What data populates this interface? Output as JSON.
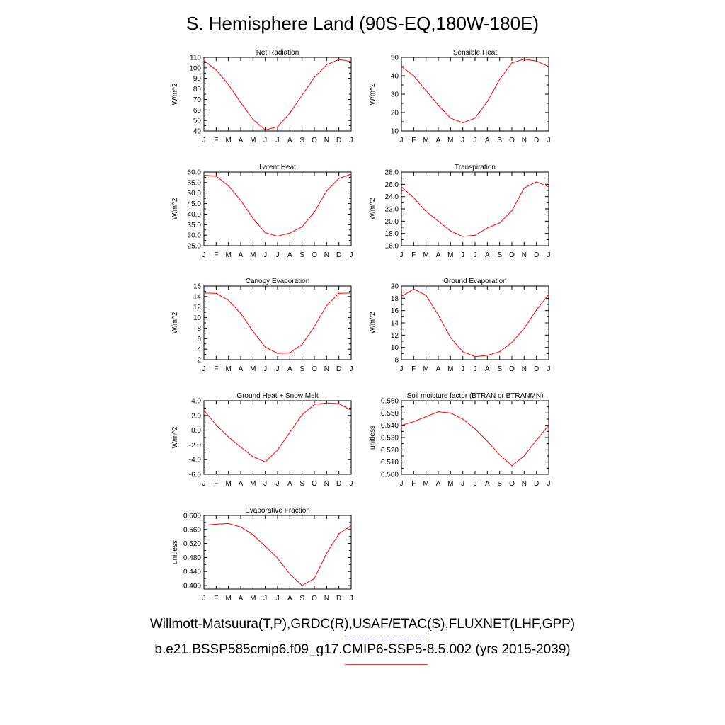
{
  "title": "S. Hemisphere Land (90S-EQ,180W-180E)",
  "legend": {
    "obs_label": "Willmott-Matsuura(T,P),GRDC(R),USAF/ETAC(S),FLUXNET(LHF,GPP)",
    "model_label": "b.e21.BSSP585cmip6.f09_g17.CMIP6-SSP5-8.5.002 (yrs 2015-2039)",
    "obs_color": "#4a4af0",
    "model_color": "#ff0000"
  },
  "chart_data": [
    {
      "type": "line",
      "title": "Net Radiation",
      "ylabel": "W/m^2",
      "categories": [
        "J",
        "F",
        "M",
        "A",
        "M",
        "J",
        "J",
        "A",
        "S",
        "O",
        "N",
        "D",
        "J"
      ],
      "ylim": [
        40,
        110
      ],
      "yticks": [
        40,
        50,
        60,
        70,
        80,
        90,
        100,
        110
      ],
      "ytick_labels": [
        "40",
        "50",
        "60",
        "70",
        "80",
        "90",
        "100",
        "110"
      ],
      "series": [
        {
          "values": [
            107,
            98,
            84,
            67,
            51,
            41,
            44,
            57,
            74,
            91,
            103,
            108,
            106
          ],
          "color": "#ff0000"
        }
      ]
    },
    {
      "type": "line",
      "title": "Sensible Heat",
      "ylabel": "W/m^2",
      "categories": [
        "J",
        "F",
        "M",
        "A",
        "M",
        "J",
        "J",
        "A",
        "S",
        "O",
        "N",
        "D",
        "J"
      ],
      "ylim": [
        10,
        50
      ],
      "yticks": [
        10,
        20,
        30,
        40,
        50
      ],
      "ytick_labels": [
        "10",
        "20",
        "30",
        "40",
        "50"
      ],
      "series": [
        {
          "values": [
            45,
            40,
            32,
            24,
            17,
            14.5,
            17,
            26,
            38,
            47,
            49,
            48,
            45
          ],
          "color": "#ff0000"
        }
      ]
    },
    {
      "type": "line",
      "title": "Latent Heat",
      "ylabel": "W/m^2",
      "categories": [
        "J",
        "F",
        "M",
        "A",
        "M",
        "J",
        "J",
        "A",
        "S",
        "O",
        "N",
        "D",
        "J"
      ],
      "ylim": [
        25,
        60
      ],
      "yticks": [
        25,
        30,
        35,
        40,
        45,
        50,
        55,
        60
      ],
      "ytick_labels": [
        "25.0",
        "30.0",
        "35.0",
        "40.0",
        "45.0",
        "50.0",
        "55.0",
        "60.0"
      ],
      "series": [
        {
          "values": [
            58.5,
            58,
            53.5,
            46.5,
            38,
            31.2,
            29.5,
            31,
            34,
            41,
            51,
            57,
            59
          ],
          "color": "#ff0000"
        }
      ]
    },
    {
      "type": "line",
      "title": "Transpiration",
      "ylabel": "W/m^2",
      "categories": [
        "J",
        "F",
        "M",
        "A",
        "M",
        "J",
        "J",
        "A",
        "S",
        "O",
        "N",
        "D",
        "J"
      ],
      "ylim": [
        16,
        28
      ],
      "yticks": [
        16,
        18,
        20,
        22,
        24,
        26,
        28
      ],
      "ytick_labels": [
        "16.0",
        "18.0",
        "20.0",
        "22.0",
        "24.0",
        "26.0",
        "28.0"
      ],
      "series": [
        {
          "values": [
            25.6,
            23.8,
            21.6,
            20,
            18.4,
            17.5,
            17.7,
            18.9,
            19.7,
            21.7,
            25.4,
            26.4,
            25.6
          ],
          "color": "#ff0000"
        }
      ]
    },
    {
      "type": "line",
      "title": "Canopy Evaporation",
      "ylabel": "W/m^2",
      "categories": [
        "J",
        "F",
        "M",
        "A",
        "M",
        "J",
        "J",
        "A",
        "S",
        "O",
        "N",
        "D",
        "J"
      ],
      "ylim": [
        2,
        16
      ],
      "yticks": [
        2,
        4,
        6,
        8,
        10,
        12,
        14,
        16
      ],
      "ytick_labels": [
        "2",
        "4",
        "6",
        "8",
        "10",
        "12",
        "14",
        "16"
      ],
      "series": [
        {
          "values": [
            14.7,
            14.6,
            13.3,
            10.8,
            7.4,
            4.4,
            3.2,
            3.3,
            4.9,
            8.3,
            12.3,
            14.6,
            14.7
          ],
          "color": "#ff0000"
        }
      ]
    },
    {
      "type": "line",
      "title": "Ground Evaporation",
      "ylabel": "W/m^2",
      "categories": [
        "J",
        "F",
        "M",
        "A",
        "M",
        "J",
        "J",
        "A",
        "S",
        "O",
        "N",
        "D",
        "J"
      ],
      "ylim": [
        8,
        20
      ],
      "yticks": [
        8,
        10,
        12,
        14,
        16,
        18,
        20
      ],
      "ytick_labels": [
        "8",
        "10",
        "12",
        "14",
        "16",
        "18",
        "20"
      ],
      "series": [
        {
          "values": [
            18.3,
            19.5,
            18.5,
            15.3,
            11.6,
            9.3,
            8.5,
            8.7,
            9.3,
            10.8,
            13.1,
            16.1,
            18.6
          ],
          "color": "#ff0000"
        }
      ]
    },
    {
      "type": "line",
      "title": "Ground Heat + Snow Melt",
      "ylabel": "W/m^2",
      "categories": [
        "J",
        "F",
        "M",
        "A",
        "M",
        "J",
        "J",
        "A",
        "S",
        "O",
        "N",
        "D",
        "J"
      ],
      "ylim": [
        -6,
        4
      ],
      "yticks": [
        -6,
        -4,
        -2,
        0,
        2,
        4
      ],
      "ytick_labels": [
        "-6.0",
        "-4.0",
        "-2.0",
        "0.0",
        "2.0",
        "4.0"
      ],
      "series": [
        {
          "values": [
            2.7,
            0.7,
            -0.9,
            -2.3,
            -3.6,
            -4.3,
            -2.7,
            -0.3,
            2.1,
            3.5,
            3.7,
            3.6,
            2.7
          ],
          "color": "#ff0000"
        }
      ]
    },
    {
      "type": "line",
      "title": "Soil moisture factor (BTRAN or BTRANMN)",
      "ylabel": "unitless",
      "categories": [
        "J",
        "F",
        "M",
        "A",
        "M",
        "J",
        "J",
        "A",
        "S",
        "O",
        "N",
        "D",
        "J"
      ],
      "ylim": [
        0.5,
        0.56
      ],
      "yticks": [
        0.5,
        0.51,
        0.52,
        0.53,
        0.54,
        0.55,
        0.56
      ],
      "ytick_labels": [
        "0.500",
        "0.510",
        "0.520",
        "0.530",
        "0.540",
        "0.550",
        "0.560"
      ],
      "series": [
        {
          "values": [
            0.54,
            0.543,
            0.547,
            0.551,
            0.55,
            0.545,
            0.537,
            0.527,
            0.516,
            0.507,
            0.515,
            0.528,
            0.54
          ],
          "color": "#ff0000"
        }
      ]
    },
    {
      "type": "line",
      "title": "Evaporative Fraction",
      "ylabel": "unitless",
      "categories": [
        "J",
        "F",
        "M",
        "A",
        "M",
        "J",
        "J",
        "A",
        "S",
        "O",
        "N",
        "D",
        "J"
      ],
      "ylim": [
        0.39,
        0.6
      ],
      "yticks": [
        0.4,
        0.44,
        0.48,
        0.52,
        0.56,
        0.6
      ],
      "ytick_labels": [
        "0.400",
        "0.440",
        "0.480",
        "0.520",
        "0.560",
        "0.600"
      ],
      "series": [
        {
          "values": [
            0.572,
            0.575,
            0.577,
            0.567,
            0.545,
            0.512,
            0.478,
            0.433,
            0.4,
            0.42,
            0.492,
            0.548,
            0.571
          ],
          "color": "#ff0000"
        }
      ]
    }
  ]
}
